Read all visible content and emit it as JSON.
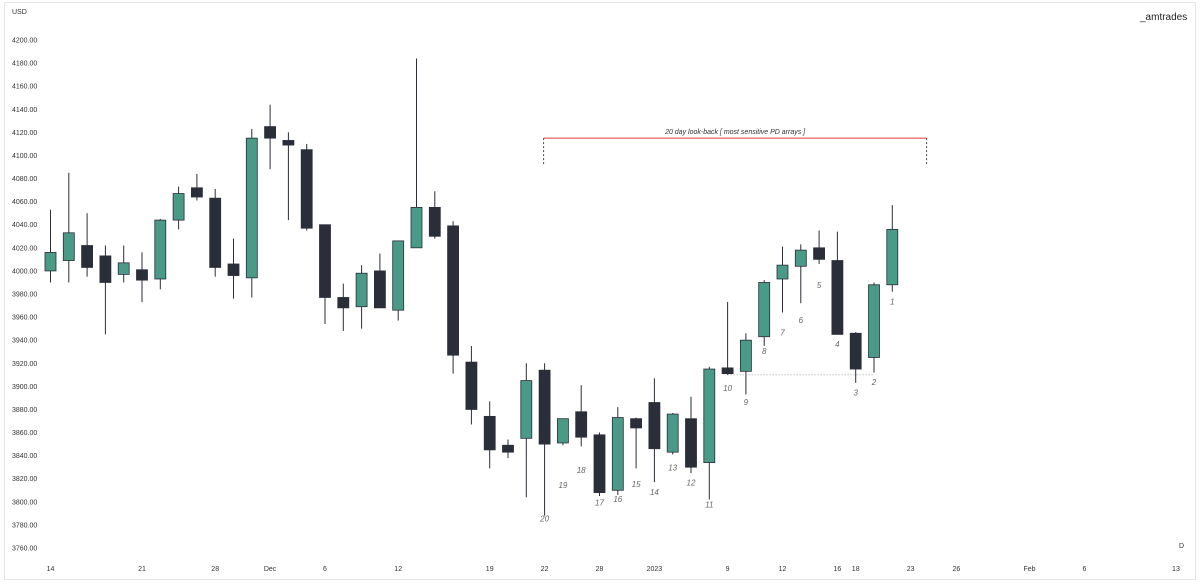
{
  "watermark": "_amtrades",
  "timeframe_label": "D",
  "chart_data": {
    "type": "candlestick",
    "ylabel": "USD",
    "ylim": [
      3756,
      4220
    ],
    "yticks": [
      "4200.00",
      "4180.00",
      "4160.00",
      "4140.00",
      "4120.00",
      "4100.00",
      "4080.00",
      "4060.00",
      "4040.00",
      "4020.00",
      "4000.00",
      "3980.00",
      "3960.00",
      "3940.00",
      "3920.00",
      "3900.00",
      "3880.00",
      "3860.00",
      "3840.00",
      "3820.00",
      "3800.00",
      "3780.00",
      "3760.00"
    ],
    "xticks": [
      {
        "label": "14",
        "slot": 0
      },
      {
        "label": "21",
        "slot": 5
      },
      {
        "label": "28",
        "slot": 9
      },
      {
        "label": "Dec",
        "slot": 12
      },
      {
        "label": "6",
        "slot": 15
      },
      {
        "label": "12",
        "slot": 19
      },
      {
        "label": "19",
        "slot": 24
      },
      {
        "label": "22",
        "slot": 27
      },
      {
        "label": "28",
        "slot": 30
      },
      {
        "label": "2023",
        "slot": 33
      },
      {
        "label": "9",
        "slot": 37
      },
      {
        "label": "12",
        "slot": 40
      },
      {
        "label": "16",
        "slot": 43
      },
      {
        "label": "18",
        "slot": 44
      },
      {
        "label": "23",
        "slot": 47
      },
      {
        "label": "26",
        "slot": 49.5
      },
      {
        "label": "Feb",
        "slot": 53.5
      },
      {
        "label": "6",
        "slot": 56.5
      },
      {
        "label": "13",
        "slot": 61.5
      }
    ],
    "colors": {
      "up": "#4a9a88",
      "down": "#2a2e39",
      "wick": "#2a2e39"
    },
    "candles": [
      {
        "o": 4000,
        "h": 4053,
        "l": 3990,
        "c": 4016
      },
      {
        "o": 4009,
        "h": 4085,
        "l": 3990,
        "c": 4033
      },
      {
        "o": 4022,
        "h": 4050,
        "l": 3995,
        "c": 4003
      },
      {
        "o": 4013,
        "h": 4022,
        "l": 3945,
        "c": 3990
      },
      {
        "o": 3997,
        "h": 4022,
        "l": 3990,
        "c": 4007
      },
      {
        "o": 4001,
        "h": 4016,
        "l": 3973,
        "c": 3992
      },
      {
        "o": 3993,
        "h": 4045,
        "l": 3984,
        "c": 4044
      },
      {
        "o": 4044,
        "h": 4073,
        "l": 4036,
        "c": 4067
      },
      {
        "o": 4072,
        "h": 4084,
        "l": 4061,
        "c": 4064
      },
      {
        "o": 4063,
        "h": 4071,
        "l": 3995,
        "c": 4003
      },
      {
        "o": 4006,
        "h": 4028,
        "l": 3976,
        "c": 3996
      },
      {
        "o": 3994,
        "h": 4123,
        "l": 3977,
        "c": 4115
      },
      {
        "o": 4125,
        "h": 4144,
        "l": 4088,
        "c": 4115
      },
      {
        "o": 4113,
        "h": 4120,
        "l": 4044,
        "c": 4109
      },
      {
        "o": 4105,
        "h": 4110,
        "l": 4035,
        "c": 4037
      },
      {
        "o": 4040,
        "h": 4040,
        "l": 3954,
        "c": 3977
      },
      {
        "o": 3977,
        "h": 3989,
        "l": 3948,
        "c": 3968
      },
      {
        "o": 3969,
        "h": 4005,
        "l": 3950,
        "c": 3998
      },
      {
        "o": 4000,
        "h": 4015,
        "l": 3968,
        "c": 3968
      },
      {
        "o": 3966,
        "h": 4025,
        "l": 3957,
        "c": 4026
      },
      {
        "o": 4020,
        "h": 4184,
        "l": 4020,
        "c": 4055
      },
      {
        "o": 4055,
        "h": 4069,
        "l": 4028,
        "c": 4030
      },
      {
        "o": 4039,
        "h": 4043,
        "l": 3911,
        "c": 3927
      },
      {
        "o": 3921,
        "h": 3935,
        "l": 3867,
        "c": 3880
      },
      {
        "o": 3874,
        "h": 3887,
        "l": 3829,
        "c": 3845
      },
      {
        "o": 3849,
        "h": 3854,
        "l": 3838,
        "c": 3843
      },
      {
        "o": 3855,
        "h": 3920,
        "l": 3804,
        "c": 3905
      },
      {
        "o": 3914,
        "h": 3920,
        "l": 3788,
        "c": 3850
      },
      {
        "o": 3851,
        "h": 3872,
        "l": 3849,
        "c": 3872
      },
      {
        "o": 3878,
        "h": 3901,
        "l": 3848,
        "c": 3856
      },
      {
        "o": 3858,
        "h": 3860,
        "l": 3805,
        "c": 3808
      },
      {
        "o": 3810,
        "h": 3882,
        "l": 3806,
        "c": 3873
      },
      {
        "o": 3872,
        "h": 3873,
        "l": 3829,
        "c": 3864
      },
      {
        "o": 3886,
        "h": 3907,
        "l": 3817,
        "c": 3846
      },
      {
        "o": 3843,
        "h": 3877,
        "l": 3841,
        "c": 3876
      },
      {
        "o": 3872,
        "h": 3891,
        "l": 3825,
        "c": 3830
      },
      {
        "o": 3834,
        "h": 3917,
        "l": 3802,
        "c": 3915
      },
      {
        "o": 3916,
        "h": 3973,
        "l": 3910,
        "c": 3911
      },
      {
        "o": 3913,
        "h": 3946,
        "l": 3893,
        "c": 3940
      },
      {
        "o": 3943,
        "h": 3992,
        "l": 3935,
        "c": 3990
      },
      {
        "o": 3993,
        "h": 4021,
        "l": 3964,
        "c": 4005
      },
      {
        "o": 4004,
        "h": 4023,
        "l": 3972,
        "c": 4018
      },
      {
        "o": 4020,
        "h": 4035,
        "l": 4006,
        "c": 4010
      },
      {
        "o": 4009,
        "h": 4034,
        "l": 3945,
        "c": 3945
      },
      {
        "o": 3946,
        "h": 3947,
        "l": 3903,
        "c": 3915
      },
      {
        "o": 3925,
        "h": 3990,
        "l": 3912,
        "c": 3988
      },
      {
        "o": 3988,
        "h": 4057,
        "l": 3982,
        "c": 4036
      }
    ],
    "candle_labels": [
      {
        "text": "20",
        "slot": 27,
        "price": 3783
      },
      {
        "text": "19",
        "slot": 28,
        "price": 3812
      },
      {
        "text": "18",
        "slot": 29,
        "price": 3825
      },
      {
        "text": "17",
        "slot": 30,
        "price": 3797
      },
      {
        "text": "16",
        "slot": 31,
        "price": 3800
      },
      {
        "text": "15",
        "slot": 32,
        "price": 3813
      },
      {
        "text": "14",
        "slot": 33,
        "price": 3806
      },
      {
        "text": "13",
        "slot": 34,
        "price": 3827
      },
      {
        "text": "12",
        "slot": 35,
        "price": 3814
      },
      {
        "text": "11",
        "slot": 36,
        "price": 3795
      },
      {
        "text": "10",
        "slot": 37,
        "price": 3896
      },
      {
        "text": "9",
        "slot": 38,
        "price": 3884
      },
      {
        "text": "8",
        "slot": 39,
        "price": 3928
      },
      {
        "text": "7",
        "slot": 40,
        "price": 3944
      },
      {
        "text": "6",
        "slot": 41,
        "price": 3955
      },
      {
        "text": "5",
        "slot": 42,
        "price": 3985
      },
      {
        "text": "4",
        "slot": 43,
        "price": 3934
      },
      {
        "text": "3",
        "slot": 44,
        "price": 3892
      },
      {
        "text": "2",
        "slot": 45,
        "price": 3901
      },
      {
        "text": "1",
        "slot": 46,
        "price": 3971
      }
    ],
    "annotation": {
      "text": "20 day look-back [ most sensitive PD arrays ]",
      "price": 4115,
      "slot_start": 27,
      "slot_end": 47,
      "bracket_bottom_price": 4092,
      "line_color": "#e03a3a"
    },
    "dotted_level": {
      "price": 3910,
      "slot_start": 37,
      "slot_end": 45
    }
  }
}
